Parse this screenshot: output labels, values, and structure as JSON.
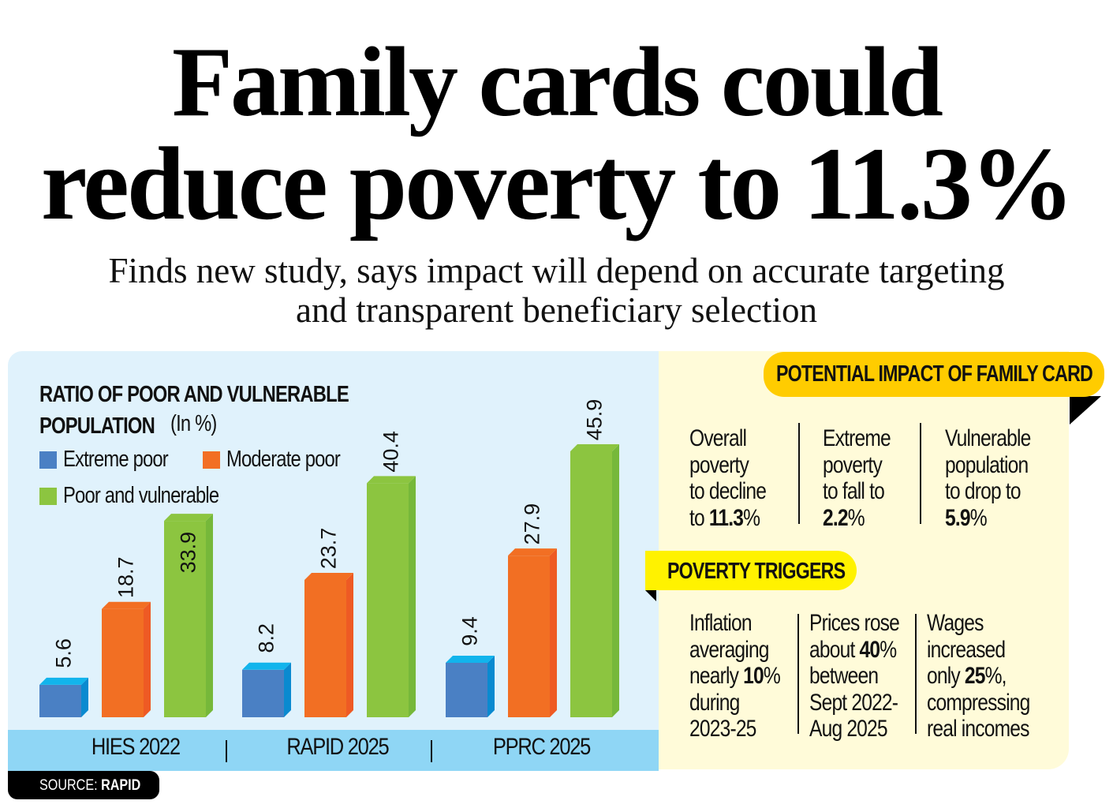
{
  "headline": {
    "line1": "Family cards could",
    "line2": "reduce poverty to 11.3%",
    "subtitle_line1": "Finds new study, says impact will depend on accurate targeting",
    "subtitle_line2": "and transparent beneficiary selection"
  },
  "chart_data": {
    "type": "bar",
    "title": "RATIO OF POOR AND VULNERABLE POPULATION",
    "unit_label": "(In %)",
    "categories": [
      "HIES 2022",
      "RAPID 2025",
      "PPRC 2025"
    ],
    "series": [
      {
        "name": "Extreme poor",
        "values": [
          5.6,
          8.2,
          9.4
        ],
        "color": "#4a80c4",
        "side_color": "#0a8ad0",
        "top_color": "#12b4ec"
      },
      {
        "name": "Moderate poor",
        "values": [
          18.7,
          23.7,
          27.9
        ],
        "color": "#f26f23",
        "side_color": "#ee5a24",
        "top_color": "#f26f23"
      },
      {
        "name": "Poor and vulnerable",
        "values": [
          33.9,
          40.4,
          45.9
        ],
        "color": "#8cc540",
        "side_color": "#76b83a",
        "top_color": "#8cc540"
      }
    ],
    "ylim": [
      0,
      50
    ],
    "grid": false,
    "legend_placement": "top-left",
    "source_label": "SOURCE:",
    "source": "RAPID"
  },
  "impact": {
    "title": "POTENTIAL IMPACT OF FAMILY CARD",
    "items": [
      {
        "lines": [
          "Overall",
          "poverty",
          "to decline"
        ],
        "prefix": "to ",
        "value": "11.3",
        "suffix": "%"
      },
      {
        "lines": [
          "Extreme",
          "poverty",
          "to fall to"
        ],
        "prefix": "",
        "value": "2.2",
        "suffix": "%"
      },
      {
        "lines": [
          "Vulnerable",
          "population",
          "to drop to"
        ],
        "prefix": "",
        "value": "5.9",
        "suffix": "%"
      }
    ]
  },
  "triggers": {
    "title": "POVERTY TRIGGERS",
    "items": [
      {
        "l1": "Inflation",
        "l2": "averaging",
        "l3_pre": "nearly ",
        "l3_val": "10",
        "l3_suf": "%",
        "l4": "during",
        "l5": "2023-25"
      },
      {
        "l1": "Prices rose",
        "l2_pre": "about ",
        "l2_val": "40",
        "l2_suf": "%",
        "l3": "between",
        "l4": "Sept 2022-",
        "l5": "Aug 2025"
      },
      {
        "l1": "Wages",
        "l2": "increased",
        "l3_pre": "only ",
        "l3_val": "25",
        "l3_suf": "%,",
        "l4": "compressing",
        "l5": "real incomes"
      }
    ]
  },
  "colors": {
    "chart_bg": "#e0f2fc",
    "category_band": "#8fd6f5",
    "panel_bg": "#fffbd9",
    "pill_orange_yellow": "#ffcc00",
    "pill_yellow": "#fff200"
  }
}
